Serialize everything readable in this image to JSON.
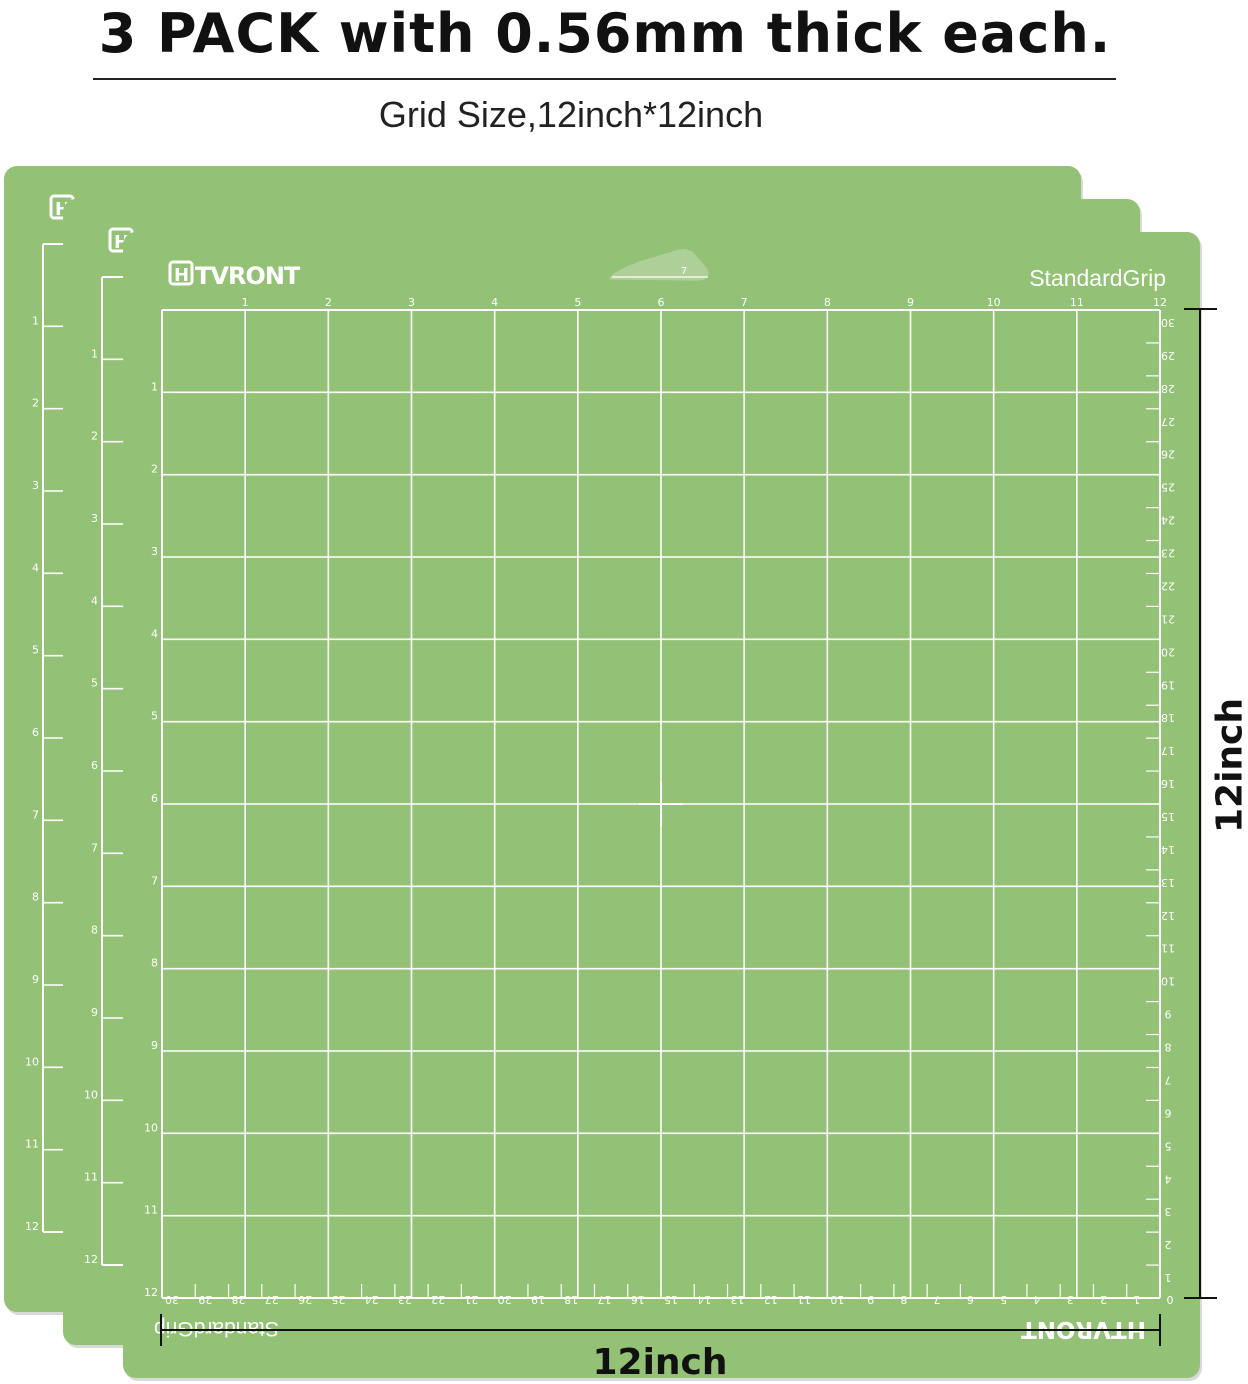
{
  "header": {
    "title": "3 PACK with 0.56mm thick each.",
    "subtitle": "Grid Size,12inch*12inch"
  },
  "mat": {
    "brand": "HTVRONT",
    "grip_label": "StandardGrip",
    "notch_label": "7",
    "inch_count": 12,
    "cm_count": 30,
    "pack_count": 3,
    "color": "#93c176",
    "line_color": "#ffffff"
  },
  "dimensions": {
    "width_label": "12inch",
    "height_label": "12inch"
  }
}
